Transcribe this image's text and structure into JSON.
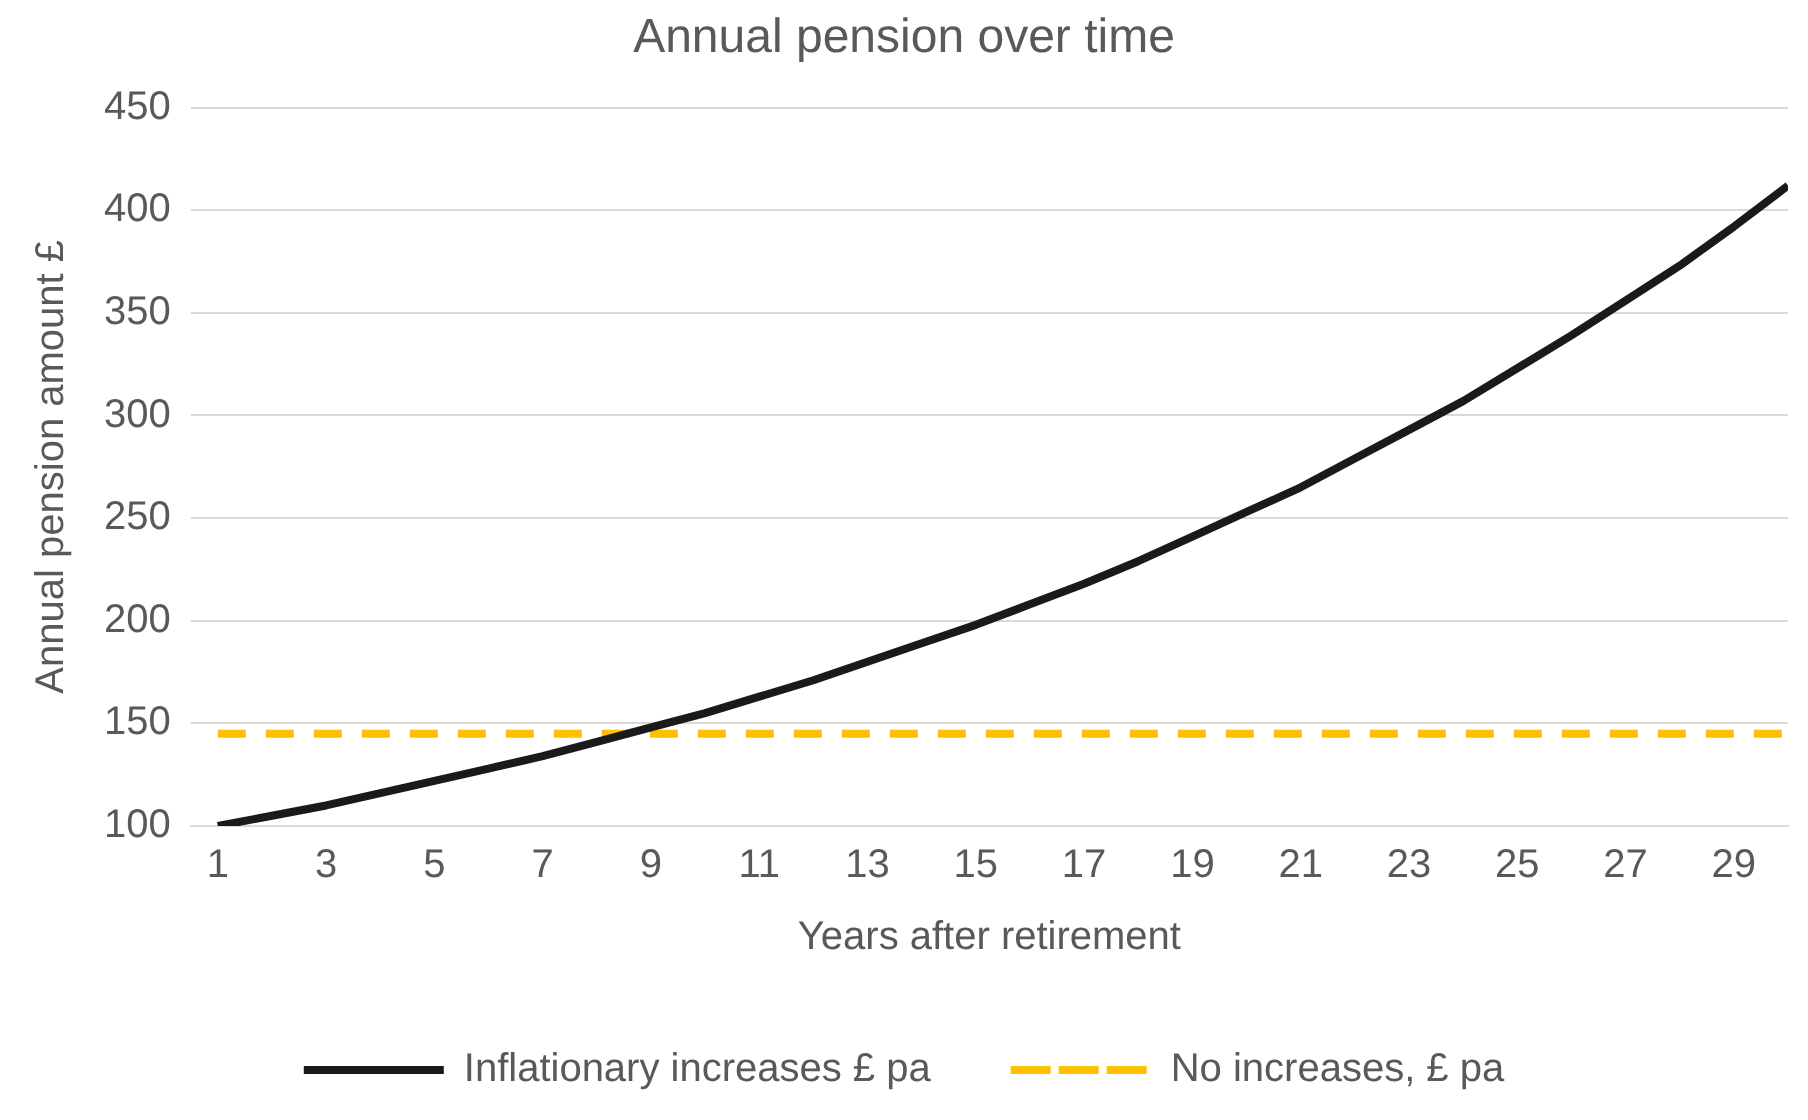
{
  "chart_data": {
    "type": "line",
    "title": "Annual pension over time",
    "xlabel": "Years after retirement",
    "ylabel": "Annual pension amount £",
    "x": [
      1,
      2,
      3,
      4,
      5,
      6,
      7,
      8,
      9,
      10,
      11,
      12,
      13,
      14,
      15,
      16,
      17,
      18,
      19,
      20,
      21,
      22,
      23,
      24,
      25,
      26,
      27,
      28,
      29,
      30
    ],
    "xlim": [
      0.5,
      30
    ],
    "xticks": [
      1,
      3,
      5,
      7,
      9,
      11,
      13,
      15,
      17,
      19,
      21,
      23,
      25,
      27,
      29
    ],
    "series": [
      {
        "name": "Inflationary increases £ pa",
        "color": "#1a1a1a",
        "line_style": "solid",
        "values": [
          100,
          105,
          110,
          116,
          122,
          128,
          134,
          141,
          148,
          155,
          163,
          171,
          180,
          189,
          198,
          208,
          218,
          229,
          241,
          253,
          265,
          279,
          293,
          307,
          323,
          339,
          356,
          373,
          392,
          412
        ]
      },
      {
        "name": "No increases, £ pa",
        "color": "#ffc000",
        "line_style": "dashed",
        "values": [
          145,
          145,
          145,
          145,
          145,
          145,
          145,
          145,
          145,
          145,
          145,
          145,
          145,
          145,
          145,
          145,
          145,
          145,
          145,
          145,
          145,
          145,
          145,
          145,
          145,
          145,
          145,
          145,
          145,
          145
        ]
      }
    ],
    "ylim": [
      100,
      450
    ],
    "yticks": [
      100,
      150,
      200,
      250,
      300,
      350,
      400,
      450
    ],
    "grid": "y",
    "legend": "bottom",
    "marker": "none"
  }
}
